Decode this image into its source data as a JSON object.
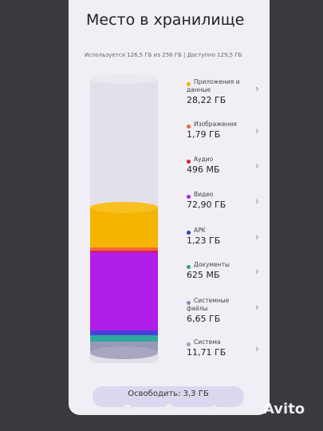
{
  "header": {
    "title": "Место в хранилище",
    "subtitle": "Используется 126,5 ГБ из 256 ГБ | Доступно 129,5 ГБ"
  },
  "items": [
    {
      "name": "Приложения и данные",
      "size": "28,22 ГБ",
      "color": "#f5b400"
    },
    {
      "name": "Изображения",
      "size": "1,79 ГБ",
      "color": "#f06a3a"
    },
    {
      "name": "Аудио",
      "size": "496 МБ",
      "color": "#e0203a"
    },
    {
      "name": "Видео",
      "size": "72,90 ГБ",
      "color": "#b01ee8"
    },
    {
      "name": "APK",
      "size": "1,23 ГБ",
      "color": "#2040d0"
    },
    {
      "name": "Документы",
      "size": "625 МБ",
      "color": "#20a870"
    },
    {
      "name": "Системные файлы",
      "size": "6,65 ГБ",
      "color": "#8a88a8"
    },
    {
      "name": "Система",
      "size": "11,71 ГБ",
      "color": "#a0a0bc"
    }
  ],
  "button": "Освободить: 3,3 ГБ",
  "watermark": "Avito"
}
